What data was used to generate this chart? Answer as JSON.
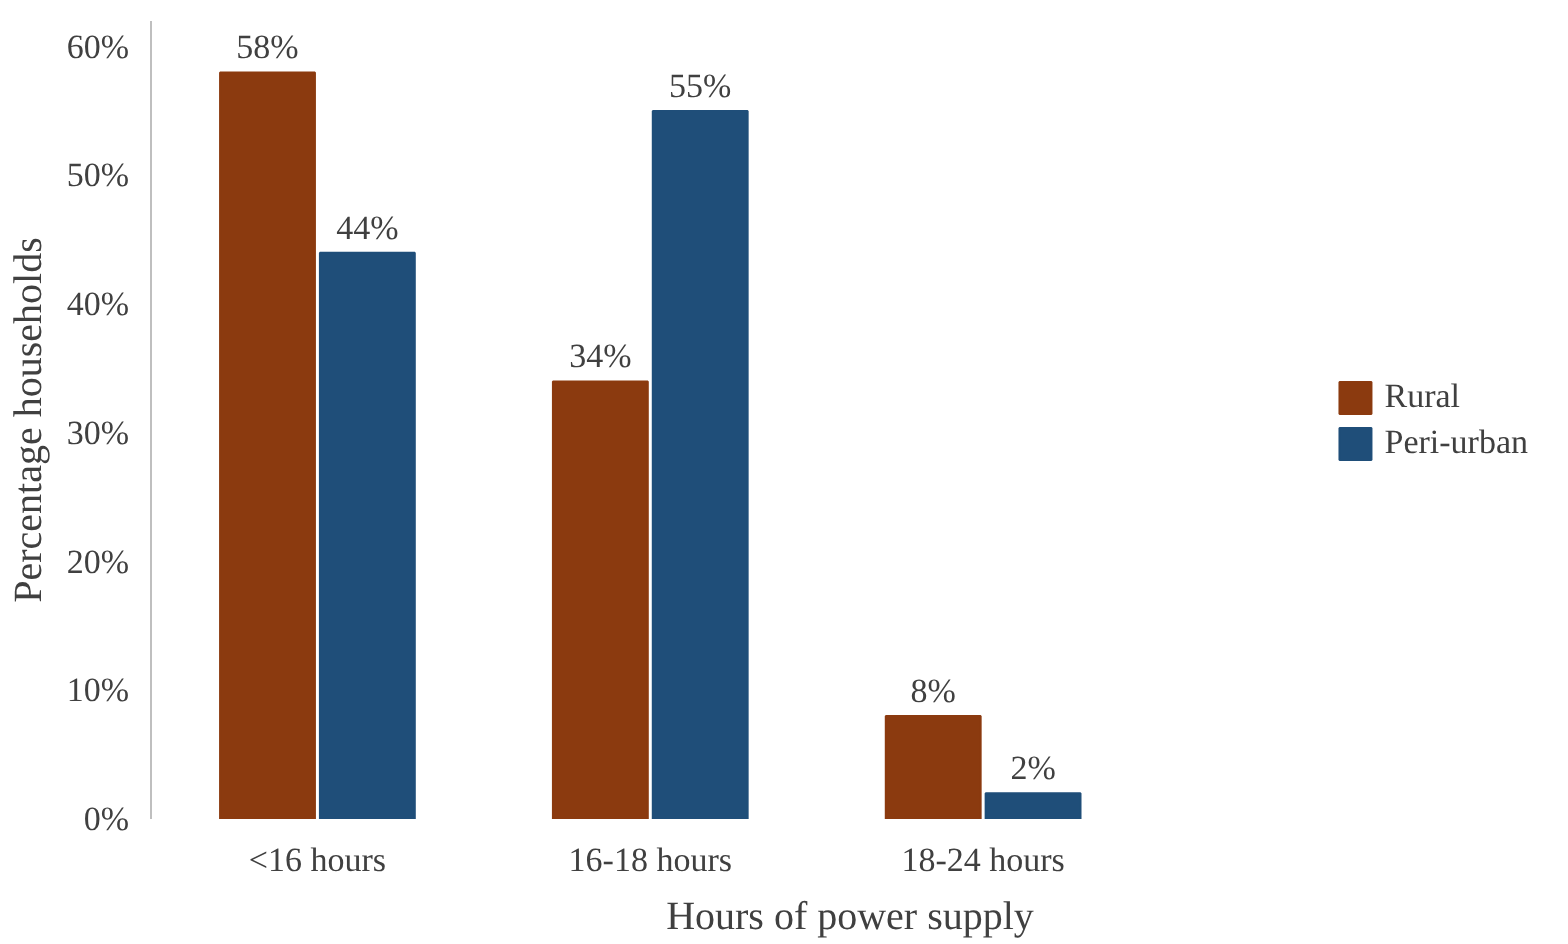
{
  "chart_data": {
    "type": "bar",
    "xlabel": "Hours of power supply",
    "ylabel": "Percentage households",
    "categories": [
      "<16 hours",
      "16-18 hours",
      "18-24 hours"
    ],
    "series": [
      {
        "name": "Rural",
        "color": "#8b3a0f",
        "values": [
          58,
          34,
          8
        ],
        "value_labels": [
          "58%",
          "34%",
          "8%"
        ]
      },
      {
        "name": "Peri-urban",
        "color": "#1f4e79",
        "values": [
          44,
          55,
          2
        ],
        "value_labels": [
          "44%",
          "55%",
          "2%"
        ]
      }
    ],
    "ylim": [
      0,
      62
    ],
    "yticks": [
      {
        "value": 0,
        "label": "0%"
      },
      {
        "value": 10,
        "label": "10%"
      },
      {
        "value": 20,
        "label": "20%"
      },
      {
        "value": 30,
        "label": "30%"
      },
      {
        "value": 40,
        "label": "40%"
      },
      {
        "value": 50,
        "label": "50%"
      },
      {
        "value": 60,
        "label": "60%"
      }
    ],
    "grid": false,
    "legend": "right"
  }
}
